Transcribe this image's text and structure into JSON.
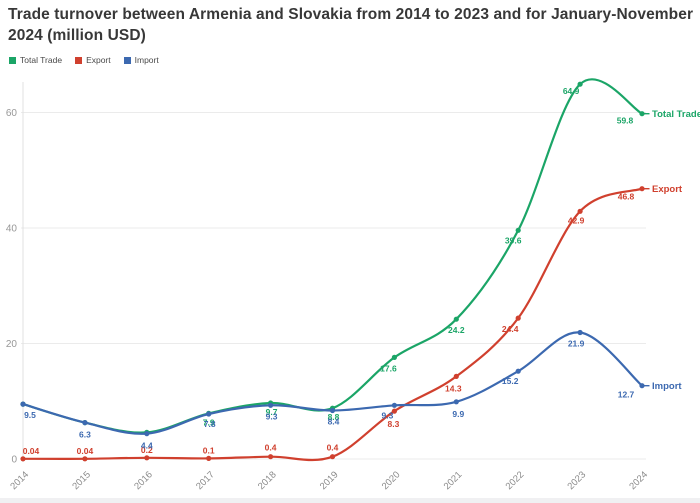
{
  "header": {
    "title": "Trade turnover between Armenia and Slovakia from 2014 to 2023 and for January-November 2024 (million USD)"
  },
  "legend": [
    {
      "label": "Total Trade",
      "color": "#1ba567"
    },
    {
      "label": "Export",
      "color": "#d0402e"
    },
    {
      "label": "Import",
      "color": "#3c69b0"
    }
  ],
  "chart_data": {
    "type": "line",
    "title": "Trade turnover between Armenia and Slovakia from 2014 to 2023 and for January-November 2024 (million USD)",
    "xlabel": "",
    "ylabel": "",
    "x": [
      "2014",
      "2015",
      "2016",
      "2017",
      "2018",
      "2019",
      "2020",
      "2021",
      "2022",
      "2023",
      "2024"
    ],
    "yticks": [
      0,
      20,
      40,
      60
    ],
    "ylim": [
      0,
      68
    ],
    "grid": true,
    "legend_position": "top-left",
    "axis_color": "#e0e0e0",
    "grid_color": "#ebebeb",
    "tick_label_color": "#979797",
    "series": [
      {
        "name": "Total Trade",
        "color": "#1ba567",
        "values": [
          9.5,
          6.3,
          4.6,
          7.9,
          9.7,
          8.8,
          17.6,
          24.2,
          39.6,
          64.9,
          59.8
        ],
        "labels": [
          "",
          "",
          "",
          "7.9",
          "9.7",
          "8.8",
          "17.6",
          "24.2",
          "39.6",
          "64.9",
          "59.8"
        ],
        "label_offsets": [
          null,
          null,
          null,
          [
            0,
            12
          ],
          [
            1,
            12
          ],
          [
            1,
            12
          ],
          [
            -6,
            14
          ],
          [
            0,
            14
          ],
          [
            -5,
            13
          ],
          [
            -9,
            10
          ],
          [
            -17,
            10
          ]
        ],
        "end_label": "Total Trade"
      },
      {
        "name": "Export",
        "color": "#d0402e",
        "values": [
          0.04,
          0.04,
          0.2,
          0.1,
          0.4,
          0.4,
          8.3,
          14.3,
          24.4,
          42.9,
          46.8
        ],
        "labels": [
          "0.04",
          "0.04",
          "0.2",
          "0.1",
          "0.4",
          "0.4",
          "8.3",
          "14.3",
          "24.4",
          "42.9",
          "46.8"
        ],
        "label_offsets": [
          [
            8,
            -5
          ],
          [
            0,
            -5
          ],
          [
            0,
            -5
          ],
          [
            0,
            -5
          ],
          [
            0,
            -6
          ],
          [
            0,
            -6
          ],
          [
            -1,
            16
          ],
          [
            -3,
            15
          ],
          [
            -8,
            14
          ],
          [
            -4,
            12
          ],
          [
            -16,
            11
          ]
        ],
        "end_label": "Export"
      },
      {
        "name": "Import",
        "color": "#3c69b0",
        "values": [
          9.5,
          6.3,
          4.4,
          7.8,
          9.3,
          8.4,
          9.3,
          9.9,
          15.2,
          21.9,
          12.7
        ],
        "labels": [
          "9.5",
          "6.3",
          "4.4",
          "7.8",
          "9.3",
          "8.4",
          "9.3",
          "9.9",
          "15.2",
          "21.9",
          "12.7"
        ],
        "label_offsets": [
          [
            7,
            14
          ],
          [
            0,
            15
          ],
          [
            0,
            15
          ],
          [
            1,
            13
          ],
          [
            1,
            14
          ],
          [
            1,
            14
          ],
          [
            -7,
            13
          ],
          [
            2,
            15
          ],
          [
            -8,
            13
          ],
          [
            -4,
            14
          ],
          [
            -16,
            12
          ]
        ],
        "end_label": "Import"
      }
    ]
  }
}
